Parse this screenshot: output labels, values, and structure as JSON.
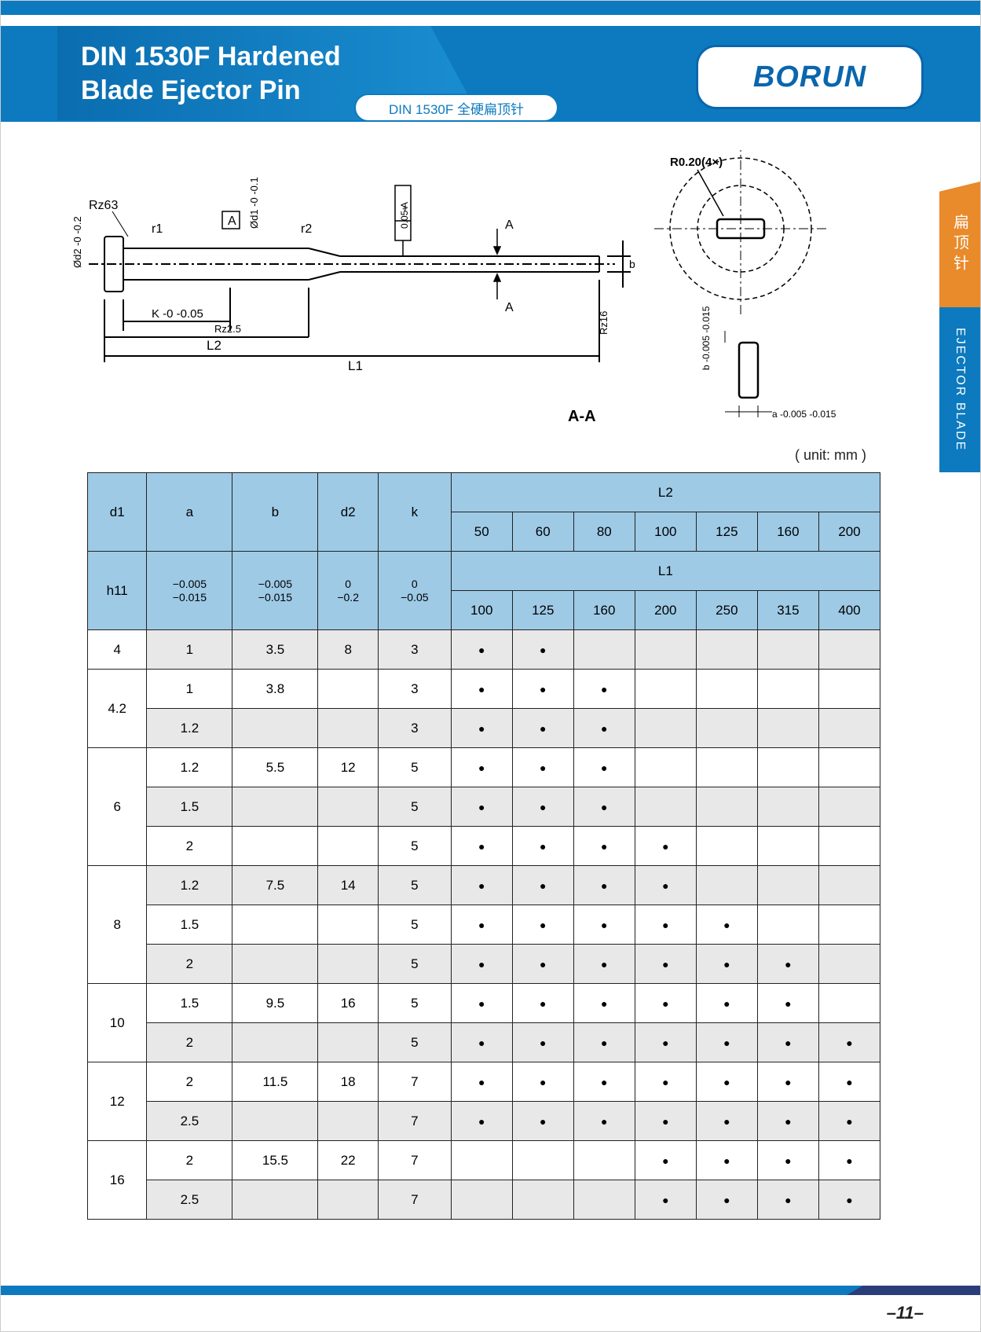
{
  "header": {
    "title_line1": "DIN 1530F Hardened",
    "title_line2": "Blade Ejector Pin",
    "subtitle": "DIN 1530F 全硬扁顶针",
    "logo": "BORUN"
  },
  "side_tab": {
    "orange_text": "扁顶针",
    "blue_text": "EJECTOR BLADE"
  },
  "diagram": {
    "labels": {
      "rz63": "Rz63",
      "r1": "r1",
      "A_box": "A",
      "r2": "r2",
      "od1_tol": "Ød1 -0\n-0.1",
      "geom_tol": "0.05 A",
      "A_right": "A",
      "b": "b",
      "od2_tol": "Ød2 -0\n-0.2",
      "K_tol": "K -0\n-0.05",
      "rz25": "Rz2.5",
      "L2": "L2",
      "L1": "L1",
      "rz16": "Rz16",
      "r020": "R0.20(4×)",
      "b_tol": "b -0.005\n-0.015",
      "a_tol": "a -0.005\n-0.015",
      "AA": "A-A"
    },
    "colors": {
      "stroke": "#000000",
      "dash": "#000000",
      "text": "#000000"
    }
  },
  "unit_label": "( unit: mm )",
  "table": {
    "header_bg": "#9ecae6",
    "alt_bg": "#e8e8e8",
    "columns_top": [
      "d1",
      "a",
      "b",
      "d2",
      "k"
    ],
    "L2_label": "L2",
    "L2_values": [
      "50",
      "60",
      "80",
      "100",
      "125",
      "160",
      "200"
    ],
    "tol_row_label": "h11",
    "tolerances": [
      "−0.005\n−0.015",
      "−0.005\n−0.015",
      "0\n−0.2",
      "0\n−0.05"
    ],
    "L1_label": "L1",
    "L1_values": [
      "100",
      "125",
      "160",
      "200",
      "250",
      "315",
      "400"
    ],
    "rows": [
      {
        "d1": "4",
        "span": 1,
        "sub": [
          {
            "a": "1",
            "b": "3.5",
            "d2": "8",
            "k": "3",
            "dots": [
              1,
              1,
              0,
              0,
              0,
              0,
              0
            ],
            "alt": 1
          }
        ]
      },
      {
        "d1": "4.2",
        "span": 2,
        "sub": [
          {
            "a": "1",
            "b": "3.8",
            "d2": "",
            "k": "3",
            "dots": [
              1,
              1,
              1,
              0,
              0,
              0,
              0
            ],
            "alt": 0
          },
          {
            "a": "1.2",
            "b": "",
            "d2": "",
            "k": "3",
            "dots": [
              1,
              1,
              1,
              0,
              0,
              0,
              0
            ],
            "alt": 1
          }
        ]
      },
      {
        "d1": "6",
        "span": 3,
        "sub": [
          {
            "a": "1.2",
            "b": "5.5",
            "d2": "12",
            "k": "5",
            "dots": [
              1,
              1,
              1,
              0,
              0,
              0,
              0
            ],
            "alt": 0
          },
          {
            "a": "1.5",
            "b": "",
            "d2": "",
            "k": "5",
            "dots": [
              1,
              1,
              1,
              0,
              0,
              0,
              0
            ],
            "alt": 1
          },
          {
            "a": "2",
            "b": "",
            "d2": "",
            "k": "5",
            "dots": [
              1,
              1,
              1,
              1,
              0,
              0,
              0
            ],
            "alt": 0
          }
        ]
      },
      {
        "d1": "8",
        "span": 3,
        "sub": [
          {
            "a": "1.2",
            "b": "7.5",
            "d2": "14",
            "k": "5",
            "dots": [
              1,
              1,
              1,
              1,
              0,
              0,
              0
            ],
            "alt": 1
          },
          {
            "a": "1.5",
            "b": "",
            "d2": "",
            "k": "5",
            "dots": [
              1,
              1,
              1,
              1,
              1,
              0,
              0
            ],
            "alt": 0
          },
          {
            "a": "2",
            "b": "",
            "d2": "",
            "k": "5",
            "dots": [
              1,
              1,
              1,
              1,
              1,
              1,
              0
            ],
            "alt": 1
          }
        ]
      },
      {
        "d1": "10",
        "span": 2,
        "sub": [
          {
            "a": "1.5",
            "b": "9.5",
            "d2": "16",
            "k": "5",
            "dots": [
              1,
              1,
              1,
              1,
              1,
              1,
              0
            ],
            "alt": 0
          },
          {
            "a": "2",
            "b": "",
            "d2": "",
            "k": "5",
            "dots": [
              1,
              1,
              1,
              1,
              1,
              1,
              1
            ],
            "alt": 1
          }
        ]
      },
      {
        "d1": "12",
        "span": 2,
        "sub": [
          {
            "a": "2",
            "b": "11.5",
            "d2": "18",
            "k": "7",
            "dots": [
              1,
              1,
              1,
              1,
              1,
              1,
              1
            ],
            "alt": 0
          },
          {
            "a": "2.5",
            "b": "",
            "d2": "",
            "k": "7",
            "dots": [
              1,
              1,
              1,
              1,
              1,
              1,
              1
            ],
            "alt": 1
          }
        ]
      },
      {
        "d1": "16",
        "span": 2,
        "sub": [
          {
            "a": "2",
            "b": "15.5",
            "d2": "22",
            "k": "7",
            "dots": [
              0,
              0,
              0,
              1,
              1,
              1,
              1
            ],
            "alt": 0
          },
          {
            "a": "2.5",
            "b": "",
            "d2": "",
            "k": "7",
            "dots": [
              0,
              0,
              0,
              1,
              1,
              1,
              1
            ],
            "alt": 1
          }
        ]
      }
    ]
  },
  "footer": {
    "page": "–11–"
  }
}
